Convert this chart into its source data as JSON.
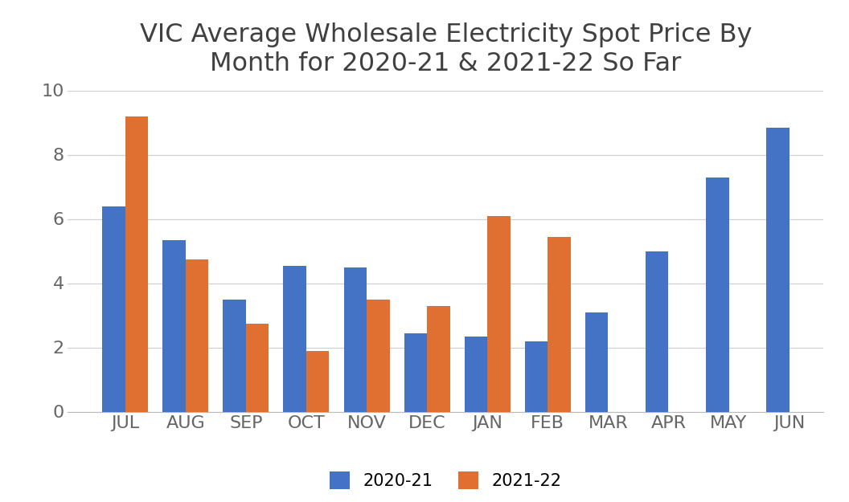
{
  "title": "VIC Average Wholesale Electricity Spot Price By\nMonth for 2020-21 & 2021-22 So Far",
  "categories": [
    "JUL",
    "AUG",
    "SEP",
    "OCT",
    "NOV",
    "DEC",
    "JAN",
    "FEB",
    "MAR",
    "APR",
    "MAY",
    "JUN"
  ],
  "series_2020_21": [
    6.4,
    5.35,
    3.5,
    4.55,
    4.5,
    2.45,
    2.35,
    2.2,
    3.1,
    5.0,
    7.3,
    8.85
  ],
  "series_2021_22": [
    9.2,
    4.75,
    2.75,
    1.9,
    3.5,
    3.3,
    6.1,
    5.45,
    null,
    null,
    null,
    null
  ],
  "color_2020_21": "#4472C4",
  "color_2021_22": "#E07031",
  "legend_labels": [
    "2020-21",
    "2021-22"
  ],
  "ylim": [
    0,
    10
  ],
  "yticks": [
    0,
    2,
    4,
    6,
    8,
    10
  ],
  "title_fontsize": 23,
  "tick_fontsize": 16,
  "legend_fontsize": 15,
  "bar_width": 0.38,
  "background_color": "#ffffff",
  "grid_color": "#d0d0d0",
  "tick_color": "#666666",
  "title_color": "#404040"
}
